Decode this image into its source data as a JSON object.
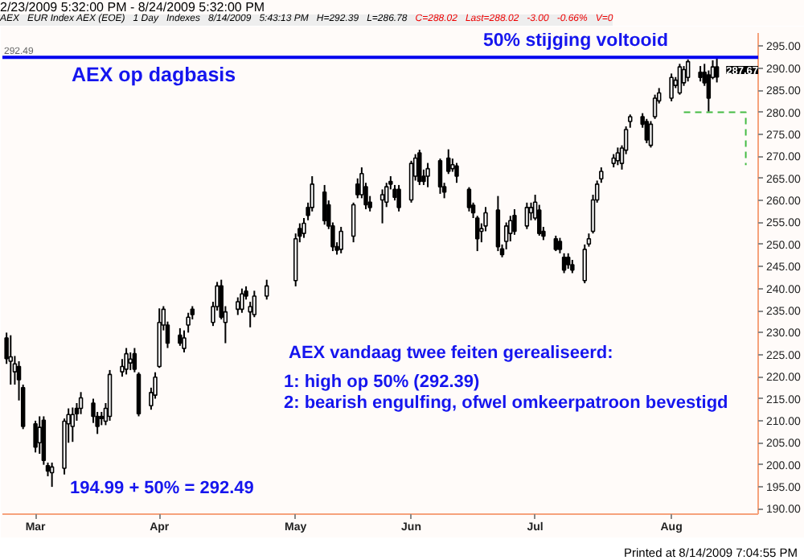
{
  "chart_data": {
    "type": "candlestick",
    "x": [
      "2009-02-23",
      "2009-02-24",
      "2009-02-25",
      "2009-02-26",
      "2009-02-27",
      "2009-03-02",
      "2009-03-03",
      "2009-03-04",
      "2009-03-05",
      "2009-03-06",
      "2009-03-09",
      "2009-03-10",
      "2009-03-11",
      "2009-03-12",
      "2009-03-13",
      "2009-03-16",
      "2009-03-17",
      "2009-03-18",
      "2009-03-19",
      "2009-03-20",
      "2009-03-23",
      "2009-03-24",
      "2009-03-25",
      "2009-03-26",
      "2009-03-27",
      "2009-03-30",
      "2009-03-31",
      "2009-04-01",
      "2009-04-02",
      "2009-04-03",
      "2009-04-06",
      "2009-04-07",
      "2009-04-08",
      "2009-04-09",
      "2009-04-14",
      "2009-04-15",
      "2009-04-16",
      "2009-04-17",
      "2009-04-20",
      "2009-04-21",
      "2009-04-22",
      "2009-04-23",
      "2009-04-24",
      "2009-04-27",
      "2009-05-04",
      "2009-05-05",
      "2009-05-06",
      "2009-05-07",
      "2009-05-08",
      "2009-05-11",
      "2009-05-12",
      "2009-05-13",
      "2009-05-14",
      "2009-05-15",
      "2009-05-18",
      "2009-05-19",
      "2009-05-20",
      "2009-05-21",
      "2009-05-22",
      "2009-05-25",
      "2009-05-26",
      "2009-05-27",
      "2009-05-28",
      "2009-05-29",
      "2009-06-01",
      "2009-06-02",
      "2009-06-03",
      "2009-06-04",
      "2009-06-05",
      "2009-06-08",
      "2009-06-09",
      "2009-06-10",
      "2009-06-11",
      "2009-06-12",
      "2009-06-15",
      "2009-06-16",
      "2009-06-17",
      "2009-06-18",
      "2009-06-19",
      "2009-06-22",
      "2009-06-23",
      "2009-06-24",
      "2009-06-25",
      "2009-06-26",
      "2009-06-29",
      "2009-06-30",
      "2009-07-01",
      "2009-07-02",
      "2009-07-03",
      "2009-07-06",
      "2009-07-07",
      "2009-07-08",
      "2009-07-09",
      "2009-07-10",
      "2009-07-13",
      "2009-07-14",
      "2009-07-15",
      "2009-07-16",
      "2009-07-17",
      "2009-07-20",
      "2009-07-21",
      "2009-07-22",
      "2009-07-23",
      "2009-07-24",
      "2009-07-27",
      "2009-07-28",
      "2009-07-29",
      "2009-07-30",
      "2009-07-31",
      "2009-08-03",
      "2009-08-04",
      "2009-08-05",
      "2009-08-06",
      "2009-08-07",
      "2009-08-10",
      "2009-08-11",
      "2009-08-12",
      "2009-08-13",
      "2009-08-14"
    ],
    "ohlc": [
      [
        228.8,
        230,
        222.9,
        224.1
      ],
      [
        223.5,
        229.4,
        218.2,
        224.5
      ],
      [
        221.1,
        224.7,
        218.2,
        222.9
      ],
      [
        222.3,
        223.5,
        214.6,
        219.3
      ],
      [
        217.5,
        218.2,
        208.1,
        208.7
      ],
      [
        209.3,
        210,
        202.8,
        204
      ],
      [
        205,
        211,
        202.5,
        208.5
      ],
      [
        210.1,
        211,
        200,
        201
      ],
      [
        199.8,
        200.5,
        197.4,
        198.6
      ],
      [
        198.2,
        200.5,
        194.99,
        199.5
      ],
      [
        199.2,
        210.5,
        197.8,
        209.9
      ],
      [
        209.3,
        212.8,
        205,
        211.4
      ],
      [
        208.7,
        213,
        205.2,
        211.4
      ],
      [
        212.8,
        214,
        210,
        211.6
      ],
      [
        212.8,
        216.5,
        211.5,
        215.2
      ],
      [
        214,
        215,
        209.5,
        211
      ],
      [
        211,
        212,
        207,
        208.7
      ],
      [
        211,
        212,
        209,
        210.5
      ],
      [
        209.9,
        214,
        209,
        212.8
      ],
      [
        211,
        221.5,
        210,
        220.5
      ],
      [
        221.1,
        224,
        220,
        222.3
      ],
      [
        221.7,
        226.5,
        220.5,
        225.2
      ],
      [
        223.1,
        225.5,
        221.5,
        224
      ],
      [
        225.2,
        226.5,
        221,
        221.7
      ],
      [
        220.5,
        221,
        211,
        211.6
      ],
      [
        213.4,
        217.5,
        212.5,
        216.4
      ],
      [
        215.8,
        221,
        215,
        219.9
      ],
      [
        222.3,
        235.5,
        222,
        232.3
      ],
      [
        231.7,
        236,
        230.5,
        235.3
      ],
      [
        231.7,
        232.5,
        226.5,
        227.6
      ],
      [
        229.4,
        231,
        227,
        227.6
      ],
      [
        226.4,
        230.5,
        225.5,
        228.8
      ],
      [
        231.7,
        234.5,
        230,
        233.5
      ],
      [
        235.3,
        236,
        233,
        234.1
      ],
      [
        232.3,
        237,
        231.5,
        235.9
      ],
      [
        235.9,
        241.5,
        235,
        240.6
      ],
      [
        240.6,
        242,
        233,
        233.5
      ],
      [
        232.3,
        236,
        227.6,
        234.7
      ],
      [
        235.3,
        238,
        234,
        237
      ],
      [
        235.3,
        240,
        234.5,
        238.8
      ],
      [
        239.4,
        240.5,
        237.5,
        238.3
      ],
      [
        234.7,
        237,
        231.2,
        235.9
      ],
      [
        234.1,
        239.5,
        233.5,
        238.3
      ],
      [
        238.3,
        242,
        237.5,
        240.6
      ],
      [
        241.8,
        252.5,
        240.5,
        251.3
      ],
      [
        253.6,
        254.8,
        250.5,
        251.9
      ],
      [
        252.5,
        256,
        251.5,
        254.8
      ],
      [
        258.4,
        259.5,
        255.5,
        256.6
      ],
      [
        258.4,
        265.5,
        257.5,
        263.7
      ],
      [
        261.9,
        263.5,
        254.5,
        255.4
      ],
      [
        259,
        260,
        253.5,
        254.2
      ],
      [
        254.2,
        255,
        248.5,
        249.5
      ],
      [
        249.5,
        250.5,
        247.7,
        248.7
      ],
      [
        248.9,
        254,
        248,
        253
      ],
      [
        251.9,
        259.5,
        250.5,
        259
      ],
      [
        263.7,
        265,
        260.5,
        261.3
      ],
      [
        261.3,
        267.5,
        260.5,
        266.1
      ],
      [
        263.1,
        264,
        258,
        259
      ],
      [
        259.6,
        261,
        257.5,
        258.4
      ],
      [
        260.1,
        262.5,
        254.8,
        261.3
      ],
      [
        259.6,
        264,
        258.5,
        263.1
      ],
      [
        264.3,
        265.5,
        262.5,
        263.7
      ],
      [
        262.5,
        263.5,
        260,
        260.7
      ],
      [
        262.5,
        263.5,
        257.5,
        258.4
      ],
      [
        260.1,
        269,
        259.5,
        268.4
      ],
      [
        265.5,
        270.5,
        264.5,
        269.6
      ],
      [
        270.8,
        271.5,
        263.5,
        264.3
      ],
      [
        265.5,
        267,
        263.5,
        264.3
      ],
      [
        265.5,
        268.5,
        263,
        267.2
      ],
      [
        269,
        269.5,
        261.5,
        263.1
      ],
      [
        263.1,
        264,
        260.5,
        261.9
      ],
      [
        269.6,
        271.6,
        266,
        266.6
      ],
      [
        267.2,
        269.5,
        266.5,
        268.1
      ],
      [
        267.8,
        268.5,
        264,
        265.5
      ],
      [
        262.5,
        263,
        257.5,
        258.4
      ],
      [
        258.9,
        259.5,
        256,
        257.2
      ],
      [
        256,
        256.5,
        248.5,
        251.3
      ],
      [
        253,
        254.8,
        250.5,
        253.6
      ],
      [
        254.2,
        258.5,
        253,
        257.2
      ],
      [
        257.8,
        261,
        248.5,
        249.5
      ],
      [
        249,
        250,
        247.1,
        247.7
      ],
      [
        250.7,
        255,
        248.9,
        254.2
      ],
      [
        252.5,
        256.5,
        250.7,
        255.4
      ],
      [
        256.6,
        258,
        252.2,
        253
      ],
      [
        254.2,
        259.5,
        253.5,
        258.4
      ],
      [
        257.2,
        259.5,
        255.5,
        258.4
      ],
      [
        256,
        261.3,
        255.5,
        259.6
      ],
      [
        257.8,
        259,
        252,
        252.5
      ],
      [
        253,
        254,
        251,
        251.9
      ],
      [
        251.3,
        252,
        248.5,
        248.9
      ],
      [
        250.7,
        251.5,
        248,
        248.9
      ],
      [
        247.1,
        248,
        243.5,
        244.2
      ],
      [
        247.1,
        248,
        244.5,
        245.4
      ],
      [
        245.4,
        246.5,
        243.5,
        244.2
      ],
      [
        241.8,
        250,
        241.2,
        248.9
      ],
      [
        250.1,
        252.5,
        249.5,
        251.3
      ],
      [
        253,
        261.3,
        252.5,
        260.1
      ],
      [
        260.1,
        264.5,
        259.5,
        263.7
      ],
      [
        264.9,
        267.5,
        264,
        266.6
      ],
      [
        268.4,
        270.5,
        267.5,
        269.6
      ],
      [
        269,
        272,
        268,
        270.8
      ],
      [
        268.4,
        272.5,
        267,
        271.9
      ],
      [
        271.4,
        276.8,
        270.5,
        276.1
      ],
      [
        277.9,
        279.5,
        276.5,
        279
      ],
      [
        279,
        279.8,
        276.5,
        277.3
      ],
      [
        277.9,
        278.5,
        273,
        273.7
      ],
      [
        272.5,
        278,
        272,
        277.3
      ],
      [
        279,
        284,
        278.5,
        283.2
      ],
      [
        282.6,
        285.5,
        282,
        284.4
      ],
      [
        283.2,
        288.8,
        282.5,
        287.9
      ],
      [
        286.1,
        288,
        285.5,
        287.3
      ],
      [
        284.4,
        291,
        284,
        290.3
      ],
      [
        286.7,
        290.5,
        286,
        289.7
      ],
      [
        287.9,
        292,
        287,
        291.5
      ],
      [
        289.1,
        290.5,
        287,
        287.9
      ],
      [
        289.1,
        291,
        286,
        286.7
      ],
      [
        288.5,
        289.5,
        280.2,
        283.2
      ],
      [
        287.9,
        291.8,
        287.5,
        290.3
      ],
      [
        290.3,
        292.39,
        286.78,
        288.02
      ]
    ],
    "series": [
      {
        "type": "line",
        "color": "#44bb44",
        "line_style": "dashed",
        "x": [
          "2009-08-06",
          "2009-08-21",
          "2009-08-21"
        ],
        "values": [
          280,
          280,
          268
        ]
      }
    ],
    "xlim": [
      "2009-02-22",
      "2009-08-24"
    ],
    "xticks": [
      {
        "value": "2009-03-02",
        "label": "Mar"
      },
      {
        "value": "2009-04-01",
        "label": "Apr"
      },
      {
        "value": "2009-05-04",
        "label": "May"
      },
      {
        "value": "2009-06-01",
        "label": "Jun"
      },
      {
        "value": "2009-07-01",
        "label": "Jul"
      },
      {
        "value": "2009-08-03",
        "label": "Aug"
      }
    ],
    "ylim": [
      188.8,
      298
    ],
    "yticks": [
      {
        "value": 190,
        "label": "190.00"
      },
      {
        "value": 195,
        "label": "195.00"
      },
      {
        "value": 200,
        "label": "200.00"
      },
      {
        "value": 205,
        "label": "205.00"
      },
      {
        "value": 210,
        "label": "210.00"
      },
      {
        "value": 215,
        "label": "215.00"
      },
      {
        "value": 220,
        "label": "220.00"
      },
      {
        "value": 225,
        "label": "225.00"
      },
      {
        "value": 230,
        "label": "230.00"
      },
      {
        "value": 235,
        "label": "235.00"
      },
      {
        "value": 240,
        "label": "240.00"
      },
      {
        "value": 245,
        "label": "245.00"
      },
      {
        "value": 250,
        "label": "250.00"
      },
      {
        "value": 255,
        "label": "255.00"
      },
      {
        "value": 260,
        "label": "260.00"
      },
      {
        "value": 265,
        "label": "265.00"
      },
      {
        "value": 270,
        "label": "270.00"
      },
      {
        "value": 275,
        "label": "275.00"
      },
      {
        "value": 280,
        "label": "280.00"
      },
      {
        "value": 285,
        "label": "285.00"
      },
      {
        "value": 290,
        "label": "290.00"
      },
      {
        "value": 295,
        "label": "295.00"
      }
    ],
    "ref_lines": [
      {
        "axis": "y",
        "value": 292.49,
        "label": "292.49",
        "color": "#0000ee"
      }
    ],
    "annotations": [
      "2/23/2009 5:32:00 PM - 8/24/2009 5:32:00 PM",
      "AEX   EUR Index AEX (EOE)   1 Day   Indexes   8/14/2009   5:43:13 PM   H=292.39   L=286.78",
      "C=288.02   Last=288.02   -3.00   -0.66%   V=0",
      "50% stijging voltooid",
      "AEX op dagbasis",
      "AEX vandaag twee feiten gerealiseerd:",
      "1: high op 50% (292.39)",
      "2: bearish engulfing, ofwel omkeerpatroon bevestigd",
      "194.99 + 50% = 292.49",
      "287.67",
      "Printed at 8/14/2009 7:04:55 PM"
    ]
  }
}
